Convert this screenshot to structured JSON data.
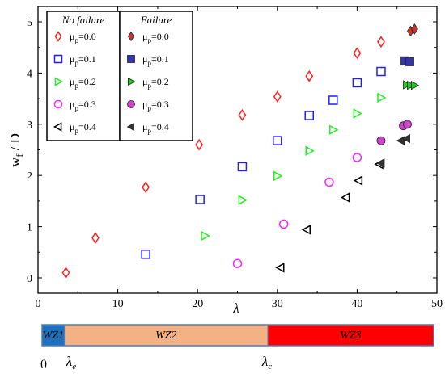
{
  "chart_data": {
    "type": "scatter",
    "xlabel": "λ",
    "ylabel": "w_f / D",
    "ylabel_main": "w",
    "ylabel_sub": "f",
    "ylabel_rest": " / D",
    "xlim": [
      0,
      50
    ],
    "ylim": [
      -0.3,
      5.3
    ],
    "x_ticks": [
      0,
      10,
      20,
      30,
      40,
      50
    ],
    "y_ticks": [
      0,
      1,
      2,
      3,
      4,
      5
    ],
    "grid": false,
    "legend": {
      "placement": "top-left",
      "group_no_failure": "No failure",
      "group_failure": "Failure"
    },
    "series": [
      {
        "name": "μp=0.0",
        "mu_label": "μ",
        "sub": "p",
        "value_label": "=0.0",
        "group": "no_failure",
        "marker": "diamond",
        "color": "#ff2020",
        "filled": false,
        "points": [
          [
            3.5,
            0.1
          ],
          [
            7.2,
            0.78
          ],
          [
            13.5,
            1.77
          ],
          [
            20.2,
            2.6
          ],
          [
            25.6,
            3.18
          ],
          [
            30,
            3.54
          ],
          [
            34,
            3.94
          ],
          [
            40,
            4.39
          ],
          [
            43,
            4.61
          ]
        ]
      },
      {
        "name": "μp=0.1",
        "mu_label": "μ",
        "sub": "p",
        "value_label": "=0.1",
        "group": "no_failure",
        "marker": "square",
        "color": "#1f1fff",
        "filled": false,
        "points": [
          [
            13.5,
            0.46
          ],
          [
            20.3,
            1.53
          ],
          [
            25.6,
            2.17
          ],
          [
            30,
            2.68
          ],
          [
            34,
            3.17
          ],
          [
            37,
            3.47
          ],
          [
            40,
            3.81
          ],
          [
            43,
            4.03
          ]
        ]
      },
      {
        "name": "μp=0.2",
        "mu_label": "μ",
        "sub": "p",
        "value_label": "=0.2",
        "group": "no_failure",
        "marker": "triangle-right",
        "color": "#22ee22",
        "filled": false,
        "points": [
          [
            20.9,
            0.82
          ],
          [
            25.6,
            1.52
          ],
          [
            30,
            1.99
          ],
          [
            34,
            2.48
          ],
          [
            37,
            2.89
          ],
          [
            40,
            3.21
          ],
          [
            43,
            3.52
          ]
        ]
      },
      {
        "name": "μp=0.3",
        "mu_label": "μ",
        "sub": "p",
        "value_label": "=0.3",
        "group": "no_failure",
        "marker": "circle",
        "color": "#ff22ff",
        "filled": false,
        "points": [
          [
            25,
            0.28
          ],
          [
            30.8,
            1.05
          ],
          [
            36.5,
            1.87
          ],
          [
            40,
            2.35
          ]
        ]
      },
      {
        "name": "μp=0.4",
        "mu_label": "μ",
        "sub": "p",
        "value_label": "=0.4",
        "group": "no_failure",
        "marker": "triangle-left",
        "color": "#000000",
        "filled": false,
        "points": [
          [
            30.4,
            0.2
          ],
          [
            33.7,
            0.94
          ],
          [
            38.6,
            1.57
          ],
          [
            40.2,
            1.9
          ],
          [
            42.8,
            2.22
          ]
        ]
      },
      {
        "name": "μp=0.0",
        "mu_label": "μ",
        "sub": "p",
        "value_label": "=0.0",
        "group": "failure",
        "marker": "diamond",
        "color": "#cc3333",
        "filled": true,
        "points": [
          [
            46.7,
            4.82
          ],
          [
            47.2,
            4.86
          ]
        ]
      },
      {
        "name": "μp=0.1",
        "mu_label": "μ",
        "sub": "p",
        "value_label": "=0.1",
        "group": "failure",
        "marker": "square",
        "color": "#3333aa",
        "filled": true,
        "points": [
          [
            46,
            4.24
          ],
          [
            46.6,
            4.22
          ]
        ]
      },
      {
        "name": "μp=0.2",
        "mu_label": "μ",
        "sub": "p",
        "value_label": "=0.2",
        "group": "failure",
        "marker": "triangle-right",
        "color": "#22cc22",
        "filled": true,
        "points": [
          [
            46.2,
            3.77
          ],
          [
            46.7,
            3.76
          ],
          [
            47.2,
            3.76
          ]
        ]
      },
      {
        "name": "μp=0.3",
        "mu_label": "μ",
        "sub": "p",
        "value_label": "=0.3",
        "group": "failure",
        "marker": "circle",
        "color": "#cc44cc",
        "filled": true,
        "points": [
          [
            43,
            2.68
          ],
          [
            45.8,
            2.97
          ],
          [
            46.3,
            3.0
          ]
        ]
      },
      {
        "name": "μp=0.4",
        "mu_label": "μ",
        "sub": "p",
        "value_label": "=0.4",
        "group": "failure",
        "marker": "triangle-left",
        "color": "#333333",
        "filled": true,
        "points": [
          [
            43,
            2.24
          ],
          [
            45.5,
            2.68
          ],
          [
            46.2,
            2.72
          ]
        ]
      }
    ],
    "zone_bar": {
      "zones": [
        {
          "label": "WZ1",
          "label_main": "WZ",
          "label_num": "1",
          "start": 0,
          "end": 3,
          "color": "#1c72c0"
        },
        {
          "label": "WZ2",
          "label_main": "WZ",
          "label_num": "2",
          "start": 3,
          "end": 28.5,
          "color": "#f4b184"
        },
        {
          "label": "WZ3",
          "label_main": "WZ",
          "label_num": "3",
          "start": 28.5,
          "end": 50,
          "color": "#ff0000"
        }
      ],
      "zero_label": "0",
      "lambda_e": {
        "symbol": "λ",
        "sub": "e",
        "value": 3
      },
      "lambda_c": {
        "symbol": "λ",
        "sub": "c",
        "value": 28.5
      }
    }
  }
}
